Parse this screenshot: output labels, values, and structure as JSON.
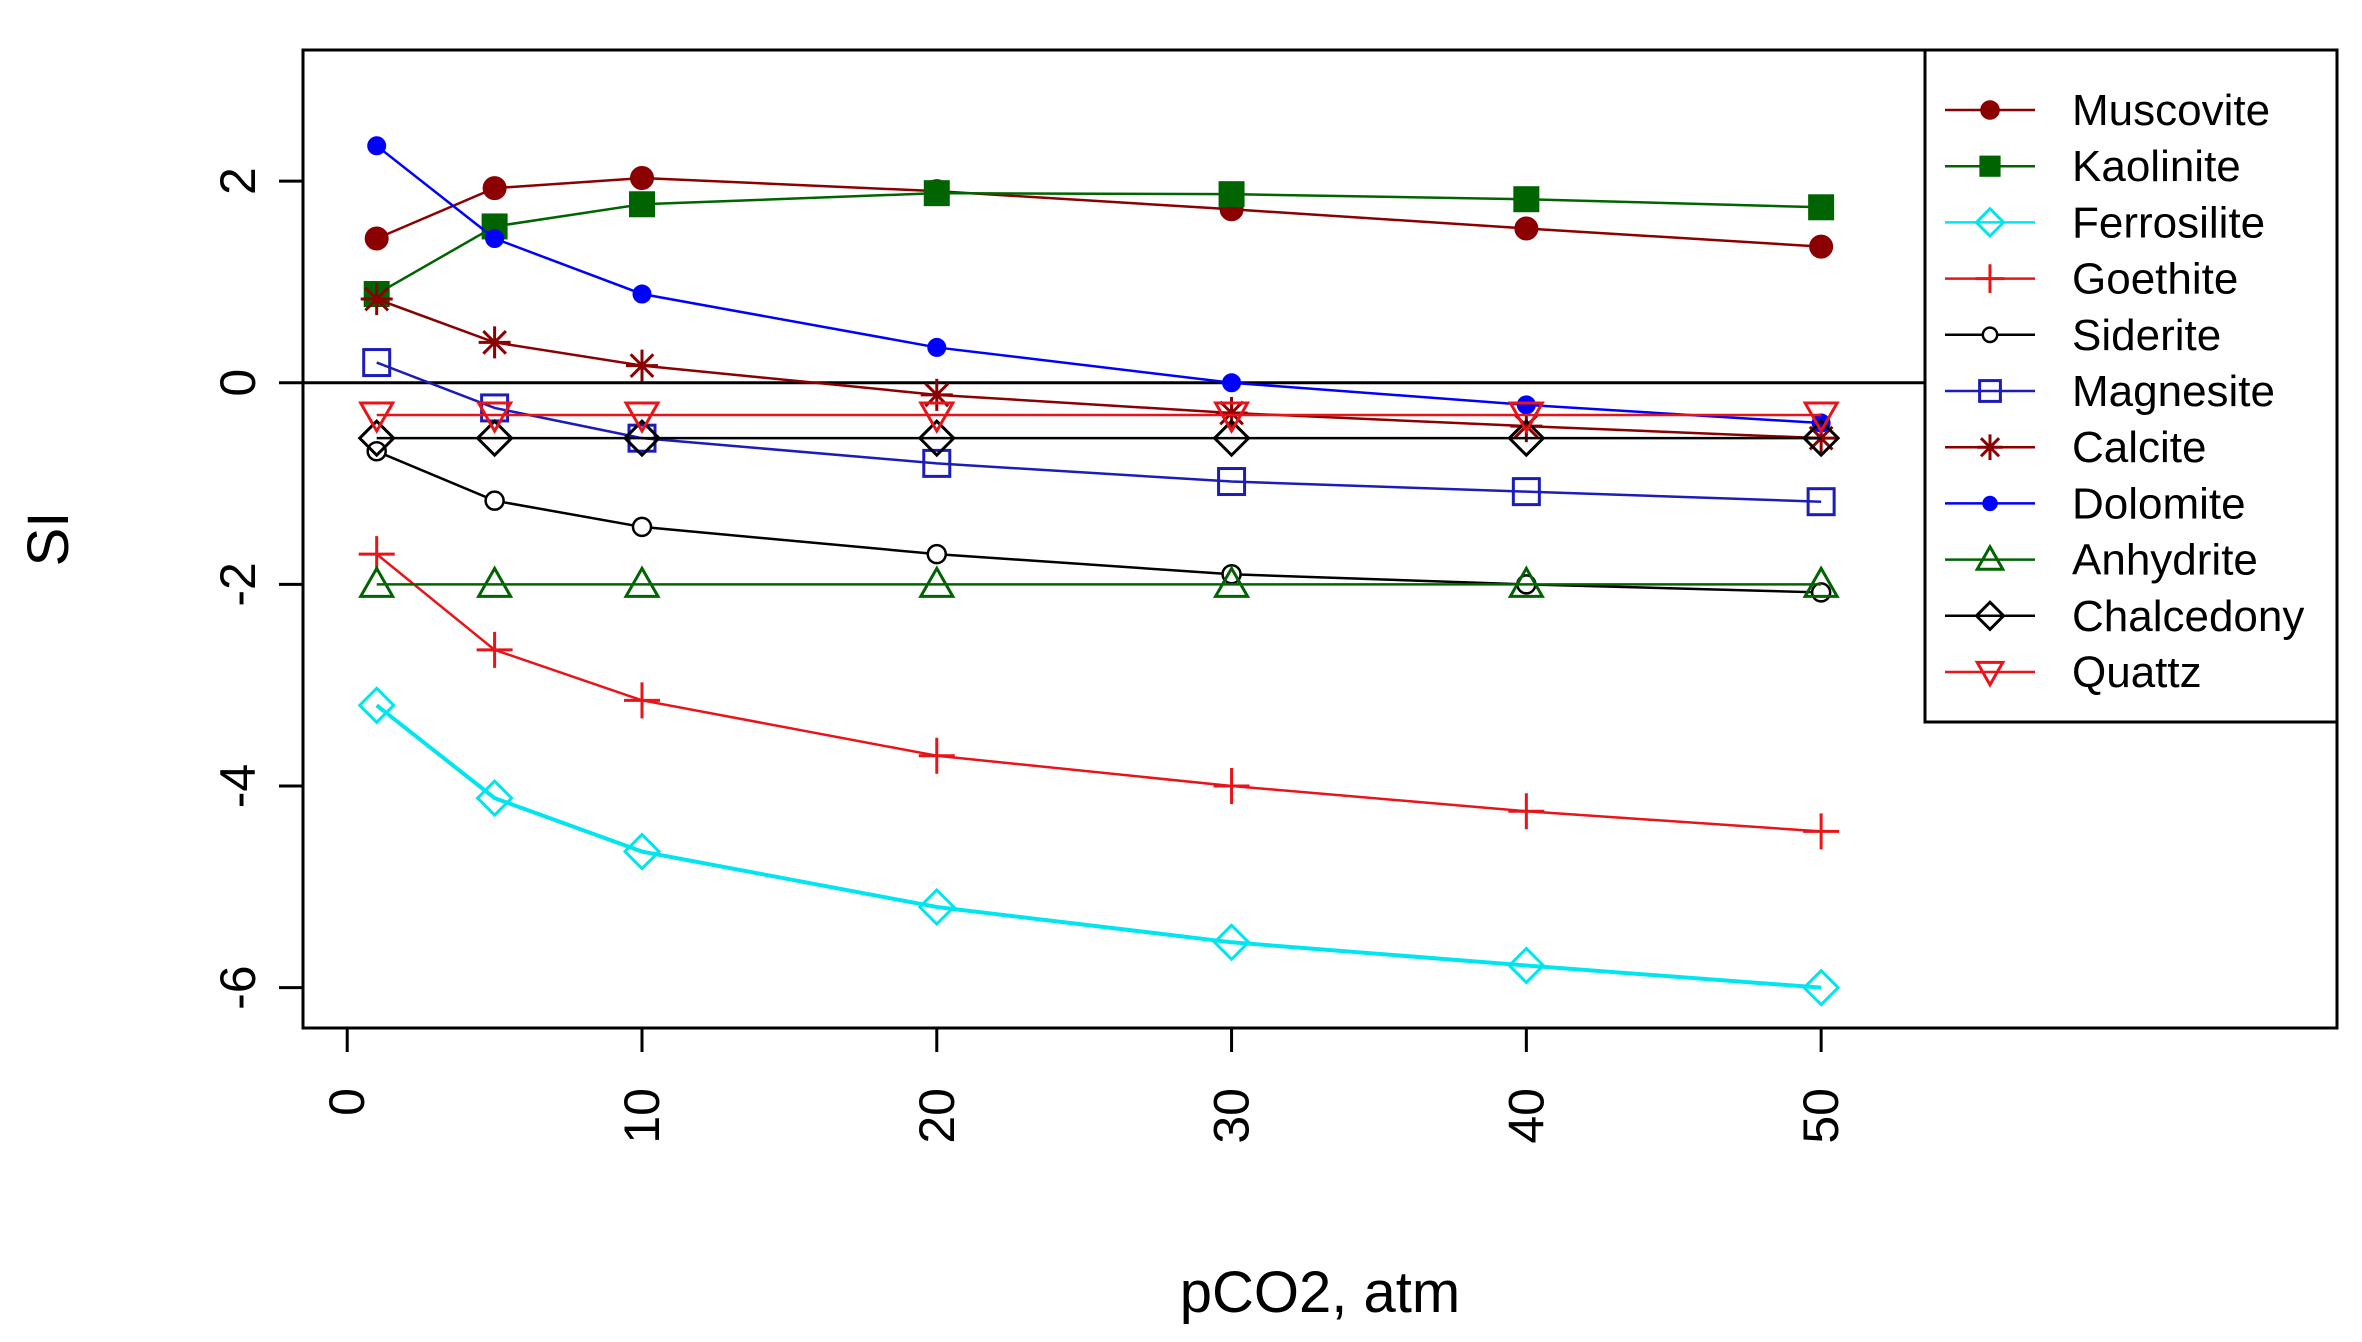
{
  "chart_data": {
    "type": "line",
    "title": "",
    "xlabel": "pCO2, atm",
    "ylabel": "SI",
    "xlim": [
      -1.5,
      67.5
    ],
    "ylim": [
      -6.4,
      3.3
    ],
    "x": [
      1,
      5,
      10,
      20,
      30,
      40,
      50
    ],
    "xticks": [
      0,
      10,
      20,
      30,
      40,
      50
    ],
    "yticks": [
      -6,
      -4,
      -2,
      0,
      2
    ],
    "xtick_labels": [
      "0",
      "10",
      "20",
      "30",
      "40",
      "50"
    ],
    "ytick_labels": [
      "-6",
      "-4",
      "-2",
      "0",
      "2"
    ],
    "reference_line_y": 0,
    "legend_position": "top-right",
    "series": [
      {
        "name": "Muscovite",
        "color": "#8b0000",
        "marker": "filled-circle",
        "values": [
          1.43,
          1.93,
          2.03,
          1.9,
          1.72,
          1.53,
          1.35
        ]
      },
      {
        "name": "Kaolinite",
        "color": "#006400",
        "marker": "filled-square",
        "values": [
          0.88,
          1.55,
          1.77,
          1.88,
          1.87,
          1.82,
          1.74
        ]
      },
      {
        "name": "Ferrosilite",
        "color": "#00e5ee",
        "marker": "open-diamond",
        "values": [
          -3.2,
          -4.12,
          -4.65,
          -5.2,
          -5.55,
          -5.78,
          -6.0
        ]
      },
      {
        "name": "Goethite",
        "color": "#e8141a",
        "marker": "plus",
        "values": [
          -1.7,
          -2.65,
          -3.15,
          -3.7,
          -4.0,
          -4.25,
          -4.45
        ]
      },
      {
        "name": "Siderite",
        "color": "#000000",
        "marker": "small-open-circle",
        "values": [
          -0.68,
          -1.17,
          -1.43,
          -1.7,
          -1.9,
          -2.0,
          -2.08
        ]
      },
      {
        "name": "Magnesite",
        "color": "#1c1cb8",
        "marker": "open-square",
        "values": [
          0.2,
          -0.25,
          -0.55,
          -0.8,
          -0.98,
          -1.08,
          -1.18
        ]
      },
      {
        "name": "Calcite",
        "color": "#8b0000",
        "marker": "asterisk",
        "values": [
          0.83,
          0.4,
          0.17,
          -0.12,
          -0.3,
          -0.43,
          -0.55
        ]
      },
      {
        "name": "Dolomite",
        "color": "#0000ff",
        "marker": "filled-dot",
        "values": [
          2.35,
          1.43,
          0.88,
          0.35,
          0.0,
          -0.22,
          -0.4
        ]
      },
      {
        "name": "Anhydrite",
        "color": "#006400",
        "marker": "open-triangle-up",
        "values": [
          -2.0,
          -2.0,
          -2.0,
          -2.0,
          -2.0,
          -2.0,
          -2.0
        ]
      },
      {
        "name": "Chalcedony",
        "color": "#000000",
        "marker": "open-diamond",
        "values": [
          -0.55,
          -0.55,
          -0.55,
          -0.55,
          -0.55,
          -0.55,
          -0.55
        ]
      },
      {
        "name": "Quattz",
        "color": "#e8141a",
        "marker": "open-triangle-down",
        "values": [
          -0.32,
          -0.32,
          -0.32,
          -0.32,
          -0.32,
          -0.32,
          -0.32
        ]
      }
    ]
  }
}
